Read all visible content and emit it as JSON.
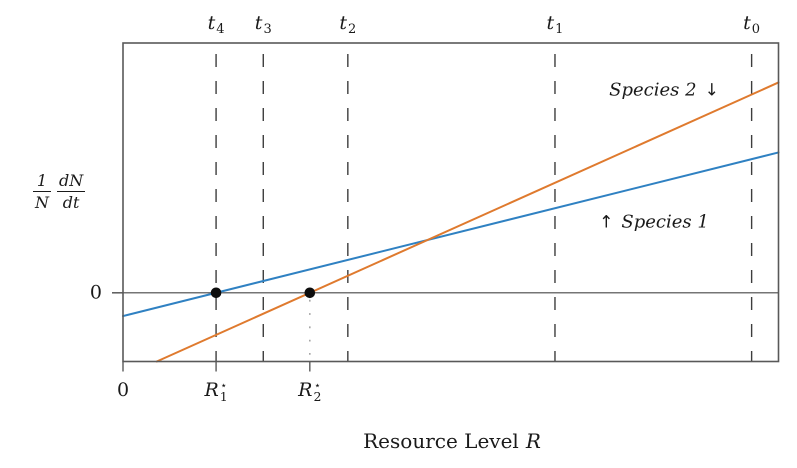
{
  "chart_data": {
    "type": "line",
    "title": "",
    "xlabel": "Resource Level R",
    "ylabel": "(1/N)(dN/dt)",
    "axis_note": "arbitrary units; only zero values labeled on both axes",
    "xlim": [
      0,
      1
    ],
    "ylim": [
      -0.275,
      1.0
    ],
    "zero_line": true,
    "grid": false,
    "series": [
      {
        "name": "Species 1",
        "color": "#2f81c2",
        "points": [
          [
            0,
            -0.093
          ],
          [
            1,
            0.562
          ]
        ],
        "zero_crossing": {
          "x": 0.142,
          "label_base": "R",
          "label_sup": "⋆",
          "label_sub": "1"
        }
      },
      {
        "name": "Species 2",
        "color": "#df7a2e",
        "points": [
          [
            0.0515,
            -0.275
          ],
          [
            1,
            0.842
          ]
        ],
        "zero_crossing": {
          "x": 0.285,
          "label_base": "R",
          "label_sup": "⋆",
          "label_sub": "2"
        }
      }
    ],
    "time_markers": [
      {
        "base": "t",
        "sub": "4",
        "x": 0.142
      },
      {
        "base": "t",
        "sub": "3",
        "x": 0.214
      },
      {
        "base": "t",
        "sub": "2",
        "x": 0.343
      },
      {
        "base": "t",
        "sub": "1",
        "x": 0.659
      },
      {
        "base": "t",
        "sub": "0",
        "x": 0.959
      }
    ],
    "x_ticks": [
      {
        "label": "0",
        "x": 0
      }
    ],
    "y_ticks": [
      {
        "label": "0",
        "y": 0
      }
    ]
  },
  "labels": {
    "species1": {
      "arrow": "↑",
      "text": "Species 1"
    },
    "species2": {
      "text": "Species 2",
      "arrow": "↓"
    },
    "ylabel_frac": {
      "num1": "1",
      "den1": "N",
      "num2": "dN",
      "den2": "dt"
    },
    "xlabel_text": "Resource Level",
    "xlabel_var": "R"
  },
  "colors": {
    "species1": "#2f81c2",
    "species2": "#df7a2e",
    "frame": "#595959",
    "zero_line": "#757575",
    "dashed_marker": "#3d3d3d",
    "dotted_drop": "#a0a0a0",
    "marker_dot": "#0d0d0d",
    "text": "#1a1a1a"
  }
}
